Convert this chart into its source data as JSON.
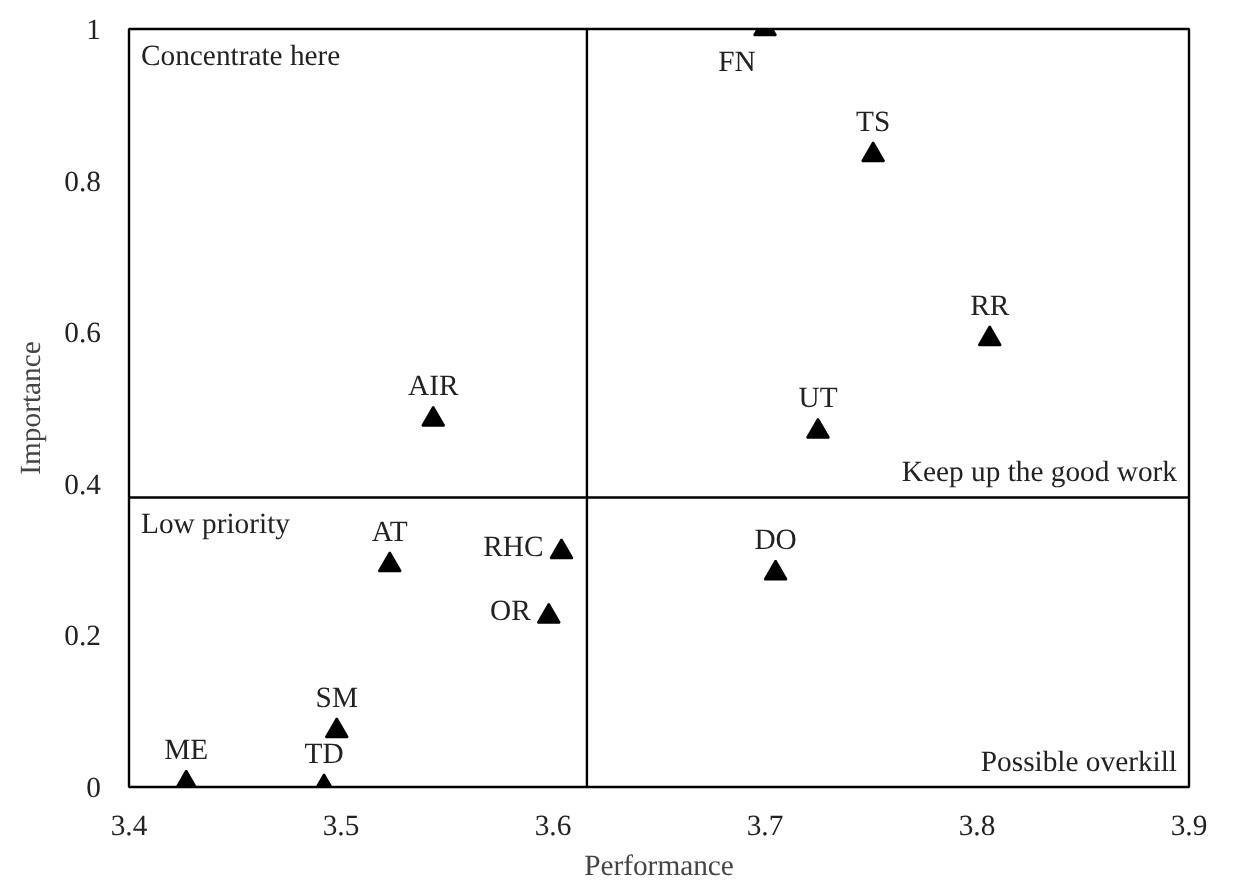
{
  "chart_data": {
    "type": "scatter",
    "xlabel": "Performance",
    "ylabel": "Importance",
    "xlim": [
      3.4,
      3.9
    ],
    "ylim": [
      0,
      1
    ],
    "xticks": [
      3.4,
      3.5,
      3.6,
      3.7,
      3.8,
      3.9
    ],
    "yticks": [
      0,
      0.2,
      0.4,
      0.6,
      0.8,
      1
    ],
    "x": [
      3.7,
      3.751,
      3.806,
      3.725,
      3.5435,
      3.705,
      3.523,
      3.604,
      3.598,
      3.498,
      3.427,
      3.492
    ],
    "series": [
      {
        "color": "#000000",
        "values": [
          1.0,
          0.834,
          0.591,
          0.469,
          0.485,
          0.282,
          0.293,
          0.31,
          0.225,
          0.074,
          0.005,
          0.0
        ]
      }
    ],
    "marker": "triangle",
    "grid": false,
    "ref_lines": [
      {
        "axis": "x",
        "value": 3.616,
        "color": "#000000"
      },
      {
        "axis": "y",
        "value": 0.382,
        "color": "#000000"
      }
    ],
    "annotations": [
      "Concentrate here",
      "Keep up the good work",
      "Low priority",
      "Possible overkill",
      {
        "text": "FN",
        "x": 3.7,
        "y": 1.0
      },
      {
        "text": "TS",
        "x": 3.751,
        "y": 0.834
      },
      {
        "text": "RR",
        "x": 3.806,
        "y": 0.591
      },
      {
        "text": "UT",
        "x": 3.725,
        "y": 0.469
      },
      {
        "text": "AIR",
        "x": 3.5435,
        "y": 0.485
      },
      {
        "text": "DO",
        "x": 3.705,
        "y": 0.282
      },
      {
        "text": "AT",
        "x": 3.523,
        "y": 0.293
      },
      {
        "text": "RHC",
        "x": 3.604,
        "y": 0.31
      },
      {
        "text": "OR",
        "x": 3.598,
        "y": 0.225
      },
      {
        "text": "SM",
        "x": 3.498,
        "y": 0.074
      },
      {
        "text": "ME",
        "x": 3.427,
        "y": 0.005
      },
      {
        "text": "TD",
        "x": 3.492,
        "y": 0.0
      }
    ]
  }
}
